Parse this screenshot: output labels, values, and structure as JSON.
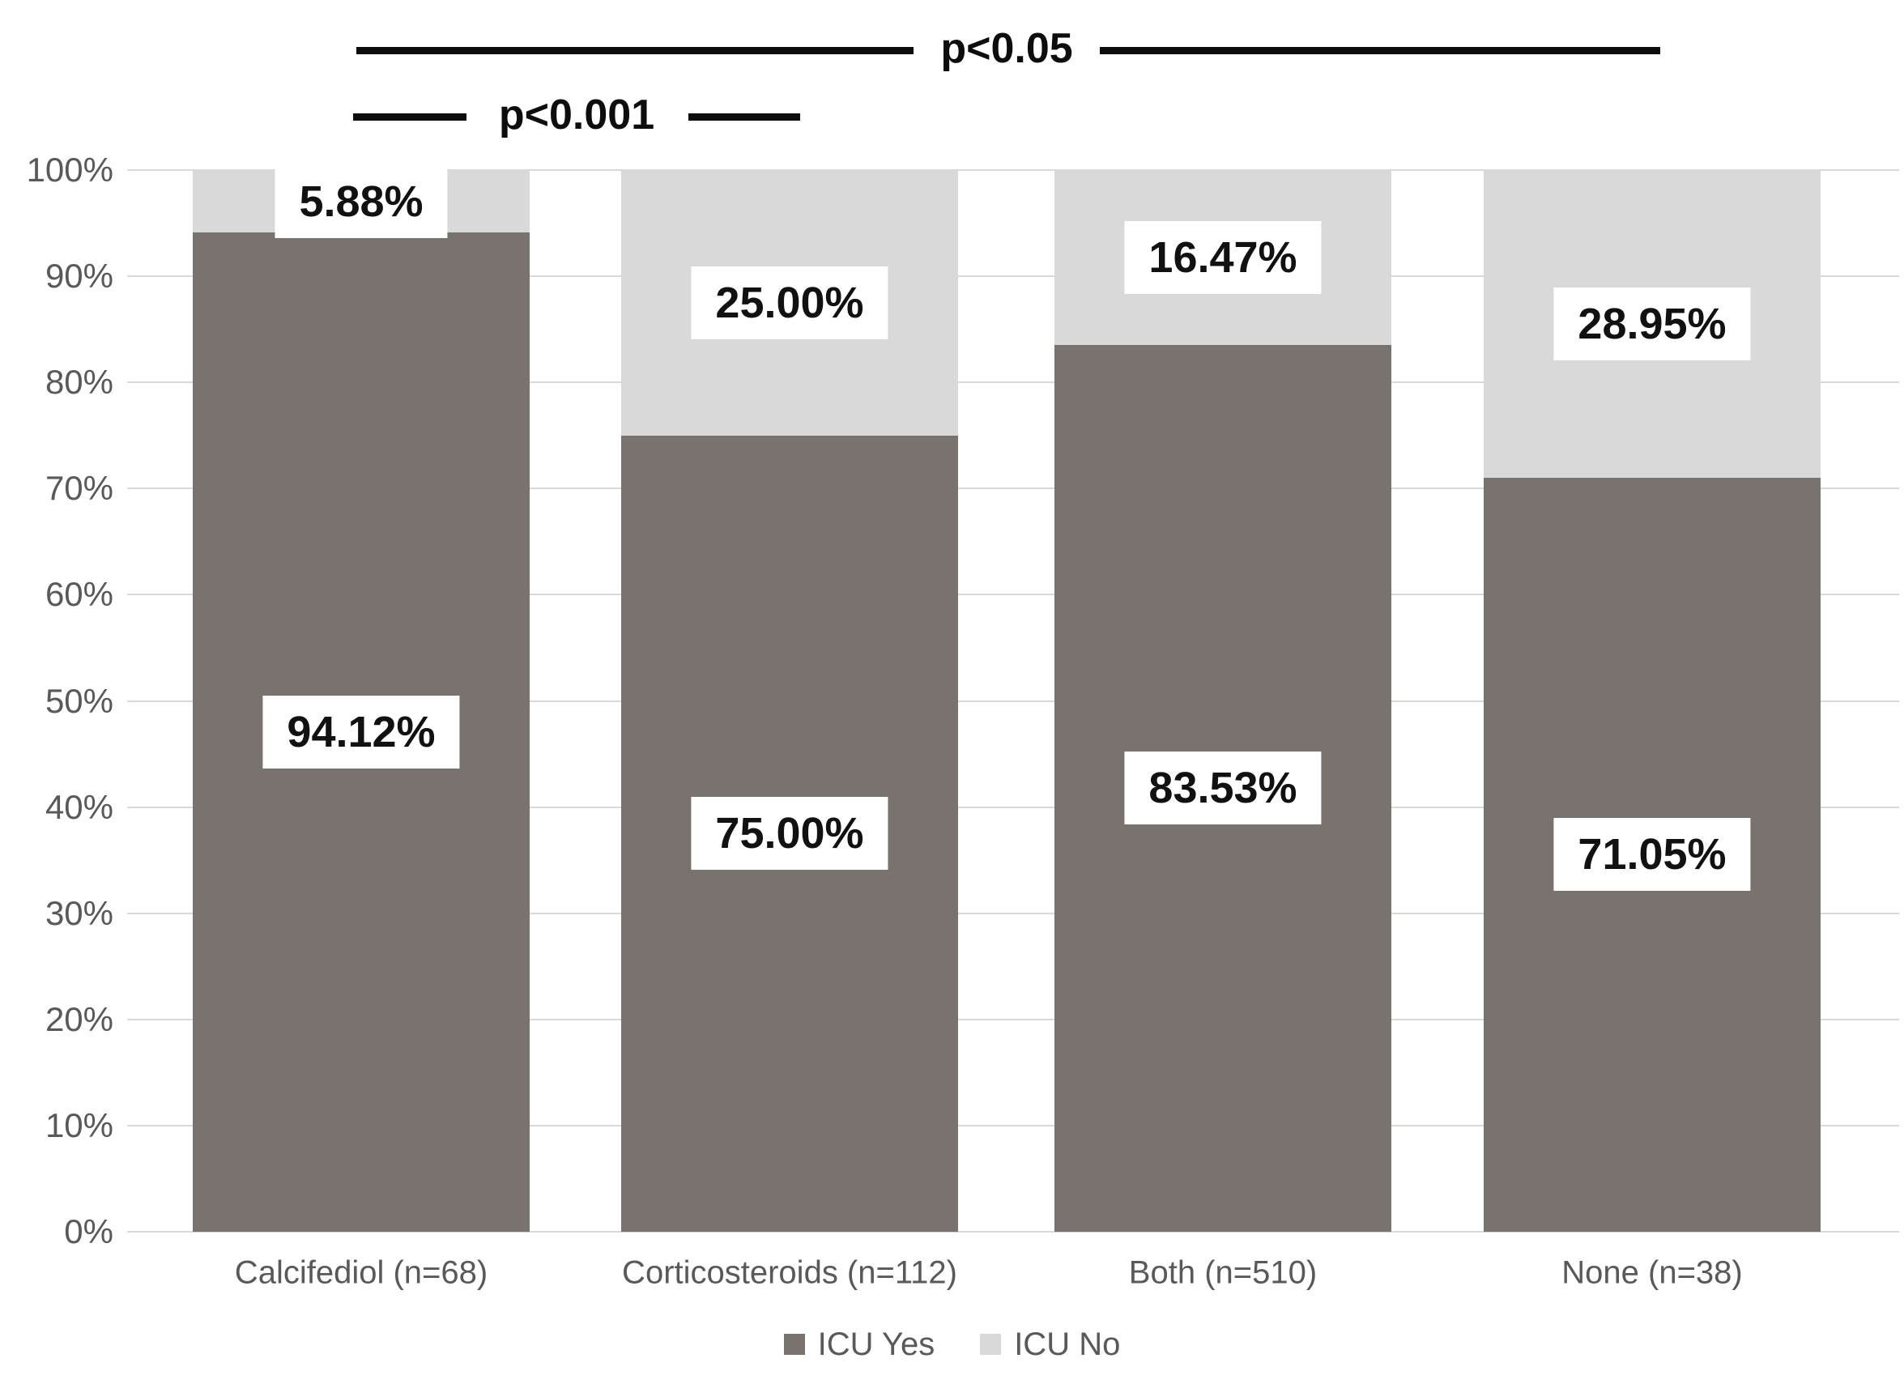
{
  "chart_data": {
    "type": "bar",
    "stacked": true,
    "percent_stacked": true,
    "title": "",
    "xlabel": "",
    "ylabel": "",
    "ylim": [
      0,
      100
    ],
    "grid": "horizontal",
    "legend_position": "bottom",
    "categories": [
      "Calcifediol (n=68)",
      "Corticosteroids (n=112)",
      "Both (n=510)",
      "None (n=38)"
    ],
    "series": [
      {
        "name": "ICU Yes",
        "color": "#7a726f",
        "values": [
          94.12,
          75.0,
          83.53,
          71.05
        ],
        "labels": [
          "94.12%",
          "75.00%",
          "83.53%",
          "71.05%"
        ]
      },
      {
        "name": "ICU No",
        "color": "#d9d9d9",
        "values": [
          5.88,
          25.0,
          16.47,
          28.95
        ],
        "labels": [
          "5.88%",
          "25.00%",
          "16.47%",
          "28.95%"
        ]
      }
    ],
    "annotations": [
      {
        "text": "p<0.05",
        "between": [
          "Calcifediol (n=68)",
          "None (n=38)"
        ]
      },
      {
        "text": "p<0.001",
        "between": [
          "Calcifediol (n=68)",
          "Corticosteroids (n=112)"
        ]
      }
    ]
  },
  "y_axis": {
    "tick_labels_top_to_bottom": [
      "100%",
      "90%",
      "80%",
      "70%",
      "60%",
      "50%",
      "40%",
      "30%",
      "20%",
      "10%",
      "0%"
    ]
  },
  "legend": {
    "items": [
      {
        "label": "ICU Yes",
        "color": "#7a726f"
      },
      {
        "label": "ICU No",
        "color": "#d9d9d9"
      }
    ]
  },
  "colors": {
    "icu_yes": "#7a726f",
    "icu_no": "#d9d9d9",
    "gridline": "#d9d9d9",
    "axis_text": "#595959",
    "annotation": "#0d0d0d"
  }
}
